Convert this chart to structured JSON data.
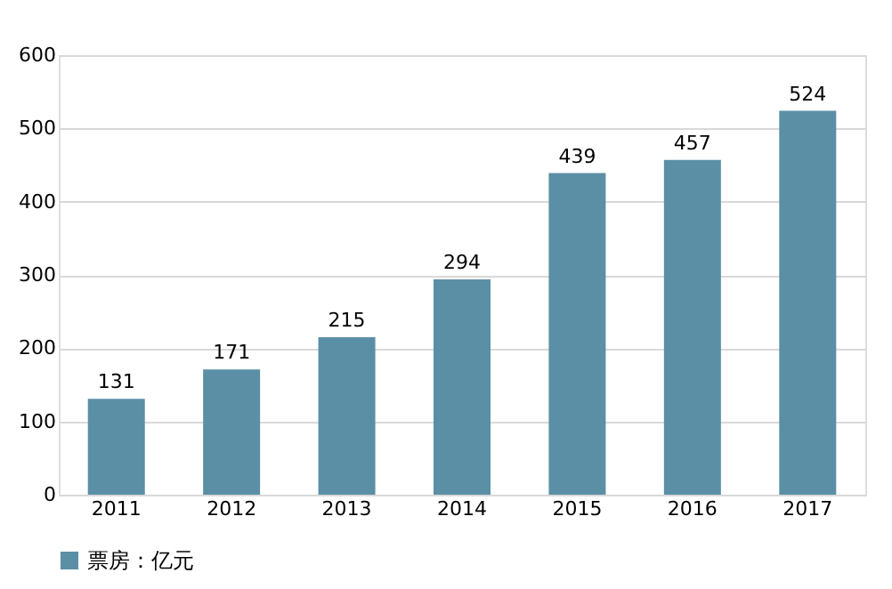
{
  "chart_data": {
    "type": "bar",
    "categories": [
      "2011",
      "2012",
      "2013",
      "2014",
      "2015",
      "2016",
      "2017"
    ],
    "series": [
      {
        "name": "票房：亿元",
        "color": "#5b8fa6",
        "values": [
          131,
          171,
          215,
          294,
          439,
          457,
          524
        ]
      }
    ],
    "ylim": [
      0,
      600
    ],
    "yticks": [
      0,
      100,
      200,
      300,
      400,
      500,
      600
    ],
    "grid": "y",
    "legend": "bottom",
    "data_labels": true
  }
}
